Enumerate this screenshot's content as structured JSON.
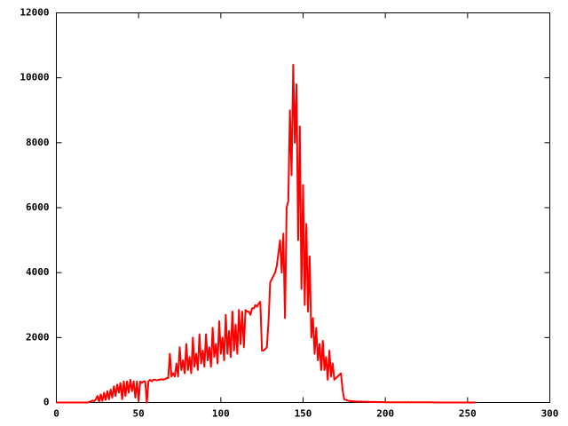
{
  "chart_data": {
    "type": "line",
    "x": [
      0,
      1,
      2,
      3,
      4,
      5,
      6,
      7,
      8,
      9,
      10,
      11,
      12,
      13,
      14,
      15,
      16,
      17,
      18,
      19,
      20,
      21,
      22,
      23,
      24,
      25,
      26,
      27,
      28,
      29,
      30,
      31,
      32,
      33,
      34,
      35,
      36,
      37,
      38,
      39,
      40,
      41,
      42,
      43,
      44,
      45,
      46,
      47,
      48,
      49,
      50,
      51,
      52,
      53,
      54,
      55,
      56,
      57,
      58,
      59,
      60,
      61,
      62,
      63,
      64,
      65,
      66,
      67,
      68,
      69,
      70,
      71,
      72,
      73,
      74,
      75,
      76,
      77,
      78,
      79,
      80,
      81,
      82,
      83,
      84,
      85,
      86,
      87,
      88,
      89,
      90,
      91,
      92,
      93,
      94,
      95,
      96,
      97,
      98,
      99,
      100,
      101,
      102,
      103,
      104,
      105,
      106,
      107,
      108,
      109,
      110,
      111,
      112,
      113,
      114,
      115,
      116,
      117,
      118,
      119,
      120,
      121,
      122,
      123,
      124,
      125,
      126,
      127,
      128,
      129,
      130,
      131,
      132,
      133,
      134,
      135,
      136,
      137,
      138,
      139,
      140,
      141,
      142,
      143,
      144,
      145,
      146,
      147,
      148,
      149,
      150,
      151,
      152,
      153,
      154,
      155,
      156,
      157,
      158,
      159,
      160,
      161,
      162,
      163,
      164,
      165,
      166,
      167,
      168,
      169,
      170,
      171,
      172,
      173,
      174,
      175,
      176,
      177,
      178,
      179,
      180,
      181,
      182,
      183,
      184,
      185,
      186,
      187,
      188,
      189,
      190,
      191,
      192,
      193,
      194,
      195,
      196,
      197,
      198,
      199,
      200,
      201,
      202,
      203,
      204,
      205,
      206,
      207,
      208,
      209,
      210,
      211,
      212,
      213,
      214,
      215,
      216,
      217,
      218,
      219,
      220,
      221,
      222,
      223,
      224,
      225,
      226,
      227,
      228,
      229,
      230,
      231,
      232,
      233,
      234,
      235,
      236,
      237,
      238,
      239,
      240,
      241,
      242,
      243,
      244,
      245,
      246,
      247,
      248,
      249,
      250,
      251,
      252,
      253,
      254,
      255
    ],
    "series": [
      {
        "color": "#ff0000",
        "values": [
          0,
          0,
          0,
          0,
          0,
          0,
          0,
          0,
          0,
          0,
          0,
          0,
          0,
          0,
          0,
          0,
          0,
          0,
          0,
          0,
          20,
          30,
          60,
          40,
          100,
          200,
          30,
          250,
          50,
          300,
          80,
          350,
          100,
          400,
          150,
          500,
          200,
          550,
          300,
          600,
          100,
          650,
          200,
          650,
          300,
          700,
          350,
          650,
          150,
          650,
          50,
          650,
          600,
          650,
          650,
          0,
          650,
          700,
          650,
          700,
          700,
          680,
          700,
          700,
          720,
          700,
          720,
          750,
          750,
          1500,
          800,
          900,
          800,
          1200,
          800,
          1700,
          1000,
          1300,
          900,
          1800,
          1000,
          1400,
          900,
          2000,
          1100,
          1500,
          1000,
          2100,
          1200,
          1600,
          1100,
          2100,
          1300,
          1700,
          1100,
          2300,
          1400,
          1800,
          1200,
          2500,
          1500,
          2000,
          1300,
          2700,
          1500,
          2200,
          1400,
          2800,
          1600,
          2400,
          1500,
          2850,
          1800,
          2800,
          1700,
          2850,
          2800,
          2800,
          2700,
          2900,
          2900,
          3000,
          2950,
          3050,
          3100,
          1600,
          1600,
          1650,
          1700,
          2500,
          3700,
          3800,
          3900,
          4000,
          4200,
          4600,
          5000,
          4000,
          5200,
          2600,
          6000,
          6200,
          9000,
          7000,
          10400,
          8000,
          9800,
          5000,
          8500,
          3500,
          6700,
          3000,
          5500,
          2800,
          4500,
          2000,
          2600,
          1500,
          2300,
          1300,
          1800,
          1000,
          1900,
          1000,
          1400,
          700,
          1600,
          800,
          1200,
          700,
          750,
          800,
          850,
          900,
          400,
          100,
          80,
          60,
          50,
          40,
          40,
          35,
          30,
          30,
          25,
          30,
          25,
          20,
          25,
          20,
          20,
          15,
          20,
          15,
          20,
          10,
          15,
          10,
          15,
          10,
          10,
          5,
          10,
          5,
          10,
          5,
          10,
          5,
          10,
          5,
          10,
          5,
          10,
          5,
          10,
          5,
          10,
          5,
          10,
          5,
          10,
          5,
          10,
          5,
          10,
          5,
          10,
          5,
          10,
          5,
          0,
          0,
          0,
          0,
          0,
          0,
          0,
          0,
          0,
          0,
          0,
          0,
          0,
          0,
          0,
          0,
          0,
          0,
          0,
          0,
          0,
          0,
          0,
          0,
          0,
          0
        ]
      }
    ],
    "xlim": [
      0,
      300
    ],
    "xticks": [
      0,
      50,
      100,
      150,
      200,
      250,
      300
    ],
    "ylim": [
      0,
      12000
    ],
    "yticks": [
      0,
      2000,
      4000,
      6000,
      8000,
      10000,
      12000
    ]
  }
}
